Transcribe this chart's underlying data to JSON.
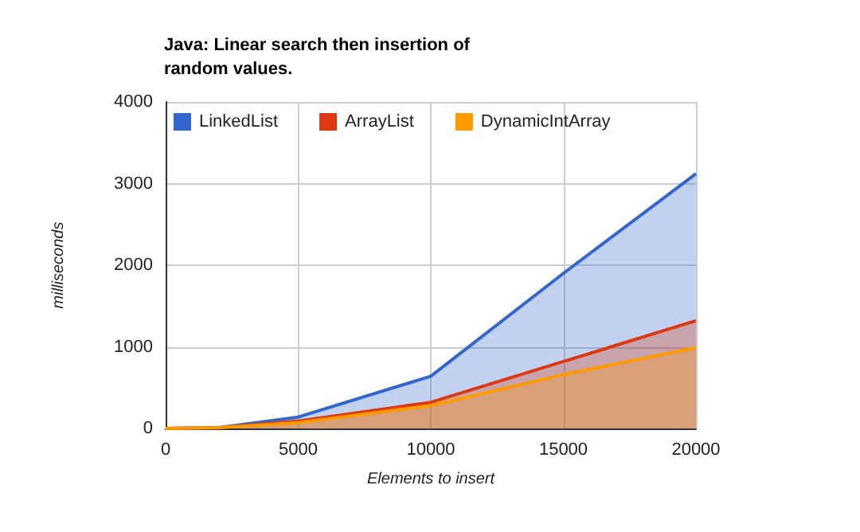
{
  "chart_data": {
    "type": "area",
    "title": "Java: Linear search then insertion of\nrandom values.",
    "xlabel": "Elements to insert",
    "ylabel": "milliseconds",
    "x": [
      0,
      2000,
      5000,
      10000,
      15000,
      20000
    ],
    "series": [
      {
        "name": "LinkedList",
        "color": "#3366cc",
        "values": [
          0,
          10,
          140,
          640,
          1900,
          3120
        ]
      },
      {
        "name": "ArrayList",
        "color": "#dc3912",
        "values": [
          0,
          10,
          90,
          320,
          820,
          1320
        ]
      },
      {
        "name": "DynamicIntArray",
        "color": "#ff9900",
        "values": [
          0,
          10,
          70,
          280,
          660,
          990
        ]
      }
    ],
    "xlim": [
      0,
      20000
    ],
    "xticks": [
      0,
      5000,
      10000,
      15000,
      20000
    ],
    "ylim": [
      0,
      4000
    ],
    "yticks": [
      0,
      1000,
      2000,
      3000,
      4000
    ],
    "grid": true,
    "legend": "top left",
    "marker": "none",
    "line_style": "solid"
  }
}
